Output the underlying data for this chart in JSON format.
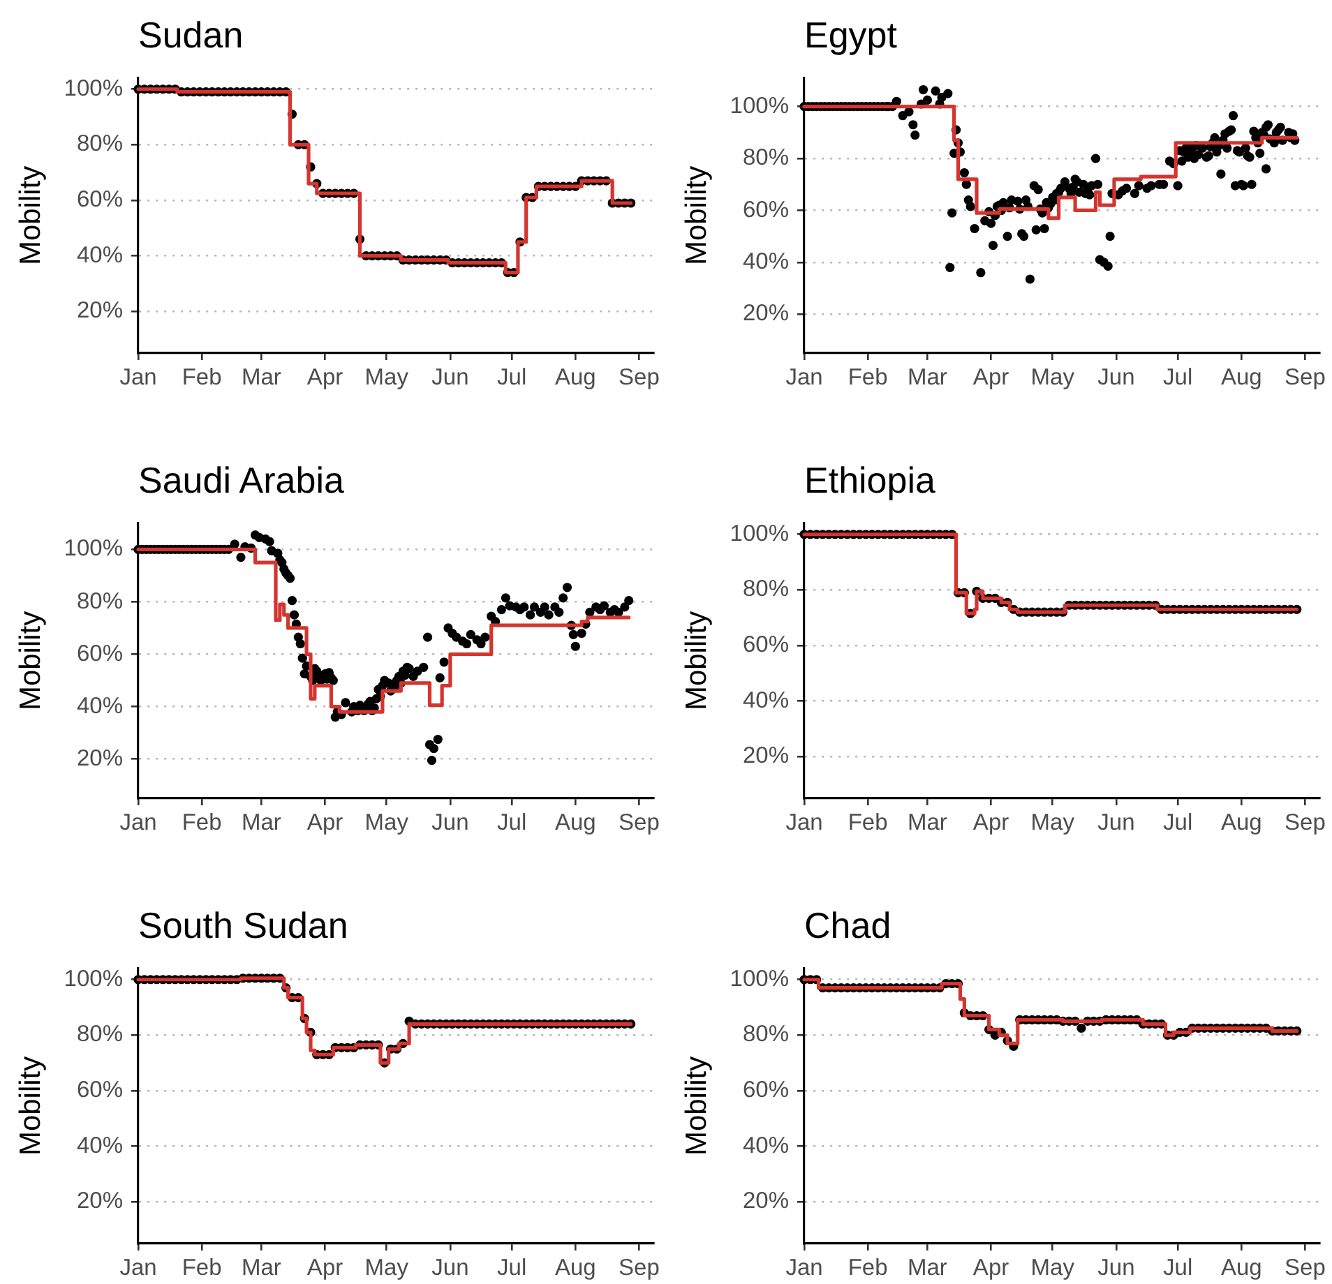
{
  "chart_data": [
    {
      "type": "scatter",
      "title": "Sudan",
      "ylabel": "Mobility",
      "grid": "y",
      "xlim": [
        "--01-01",
        "--09-08"
      ],
      "ylim": [
        5,
        104
      ],
      "xticks": [
        {
          "value": "--01-01",
          "label": "Jan"
        },
        {
          "value": "--02-01",
          "label": "Feb"
        },
        {
          "value": "--03-01",
          "label": "Mar"
        },
        {
          "value": "--04-01",
          "label": "Apr"
        },
        {
          "value": "--05-01",
          "label": "May"
        },
        {
          "value": "--06-01",
          "label": "Jun"
        },
        {
          "value": "--07-01",
          "label": "Jul"
        },
        {
          "value": "--08-01",
          "label": "Aug"
        },
        {
          "value": "--09-01",
          "label": "Sep"
        }
      ],
      "yticks": [
        {
          "value": 20,
          "label": "20%"
        },
        {
          "value": 40,
          "label": "40%"
        },
        {
          "value": 60,
          "label": "60%"
        },
        {
          "value": 80,
          "label": "80%"
        },
        {
          "value": 100,
          "label": "100%"
        }
      ],
      "x": [
        "--01-01",
        "--01-04",
        "--01-07",
        "--01-10",
        "--01-13",
        "--01-16",
        "--01-19",
        "--01-22",
        "--01-25",
        "--01-28",
        "--01-31",
        "--02-03",
        "--02-06",
        "--02-09",
        "--02-12",
        "--02-15",
        "--02-18",
        "--02-21",
        "--02-24",
        "--02-27",
        "--03-01",
        "--03-04",
        "--03-07",
        "--03-10",
        "--03-13",
        "--03-16",
        "--03-19",
        "--03-22",
        "--03-25",
        "--03-28",
        "--03-31",
        "--04-03",
        "--04-06",
        "--04-09",
        "--04-12",
        "--04-15",
        "--04-18",
        "--04-21",
        "--04-24",
        "--04-27",
        "--04-30",
        "--05-03",
        "--05-06",
        "--05-09",
        "--05-12",
        "--05-15",
        "--05-18",
        "--05-21",
        "--05-24",
        "--05-27",
        "--05-30",
        "--06-02",
        "--06-05",
        "--06-08",
        "--06-11",
        "--06-14",
        "--06-17",
        "--06-20",
        "--06-23",
        "--06-26",
        "--06-29",
        "--07-02",
        "--07-05",
        "--07-08",
        "--07-11",
        "--07-14",
        "--07-17",
        "--07-20",
        "--07-23",
        "--07-26",
        "--07-29",
        "--08-01",
        "--08-04",
        "--08-07",
        "--08-10",
        "--08-13",
        "--08-16",
        "--08-19",
        "--08-22",
        "--08-25",
        "--08-28"
      ],
      "series": [
        {
          "color": "#000000",
          "marker": "circle",
          "values": [
            100,
            100,
            100,
            100,
            100,
            100,
            100,
            99,
            99,
            99,
            99,
            99,
            99,
            99,
            99,
            99,
            99,
            99,
            99,
            99,
            99,
            99,
            99,
            99,
            99,
            91,
            80,
            80,
            72,
            66,
            62.5,
            62.5,
            62.5,
            62.5,
            62.5,
            62.5,
            46,
            40,
            40,
            40,
            40,
            40,
            40,
            38.5,
            38.5,
            38.5,
            38.5,
            38.5,
            38.5,
            38.5,
            38.5,
            37.5,
            37.5,
            37.5,
            37.5,
            37.5,
            37.5,
            37.5,
            37.5,
            37.5,
            34,
            34,
            45,
            61,
            61,
            65,
            65,
            65,
            65,
            65,
            65,
            65,
            67,
            67,
            67,
            67,
            67,
            59,
            59,
            59,
            59
          ]
        },
        {
          "type": "step",
          "color": "#d4352f",
          "x": [
            "--01-01",
            "--01-20",
            "--03-15",
            "--03-24",
            "--03-28",
            "--04-18",
            "--05-08",
            "--05-31",
            "--06-28",
            "--07-04",
            "--07-08",
            "--07-13",
            "--08-04",
            "--08-19",
            "--08-28"
          ],
          "values": [
            100,
            99,
            80,
            66,
            62.5,
            40,
            38.5,
            37.5,
            34,
            45,
            61,
            65,
            67,
            59,
            59
          ]
        }
      ]
    },
    {
      "type": "scatter",
      "title": "Egypt",
      "ylabel": "Mobility",
      "grid": "y",
      "xlim": [
        "--01-01",
        "--09-08"
      ],
      "ylim": [
        5,
        111
      ],
      "xticks": [
        {
          "value": "--01-01",
          "label": "Jan"
        },
        {
          "value": "--02-01",
          "label": "Feb"
        },
        {
          "value": "--03-01",
          "label": "Mar"
        },
        {
          "value": "--04-01",
          "label": "Apr"
        },
        {
          "value": "--05-01",
          "label": "May"
        },
        {
          "value": "--06-01",
          "label": "Jun"
        },
        {
          "value": "--07-01",
          "label": "Jul"
        },
        {
          "value": "--08-01",
          "label": "Aug"
        },
        {
          "value": "--09-01",
          "label": "Sep"
        }
      ],
      "yticks": [
        {
          "value": 20,
          "label": "20%"
        },
        {
          "value": 40,
          "label": "40%"
        },
        {
          "value": 60,
          "label": "60%"
        },
        {
          "value": 80,
          "label": "80%"
        },
        {
          "value": 100,
          "label": "100%"
        }
      ],
      "series": [
        {
          "color": "#000000",
          "marker": "circle",
          "x": [
            "--01-01",
            "--01-05",
            "--01-09",
            "--01-13",
            "--01-17",
            "--01-21",
            "--01-25",
            "--01-29",
            "--02-02",
            "--02-06",
            "--02-10",
            "--02-13",
            "--02-15",
            "--02-18",
            "--02-21",
            "--02-23",
            "--02-24",
            "--02-27",
            "--02-28",
            "--03-01",
            "--03-05",
            "--03-07",
            "--03-08",
            "--03-11",
            "--03-12",
            "--03-13",
            "--03-14",
            "--03-15",
            "--03-16",
            "--03-17",
            "--03-19",
            "--03-20",
            "--03-21",
            "--03-22",
            "--03-24",
            "--03-27",
            "--03-29",
            "--03-31",
            "--04-02",
            "--04-05",
            "--04-07",
            "--04-09",
            "--04-14",
            "--04-16",
            "--04-19",
            "--04-20",
            "--04-22",
            "--04-23",
            "--04-25",
            "--04-28",
            "--05-01",
            "--05-03",
            "--05-05",
            "--05-10",
            "--05-13",
            "--05-17",
            "--05-20",
            "--05-22",
            "--05-23",
            "--05-24",
            "--05-26",
            "--05-28",
            "--05-29",
            "--05-30",
            "--06-02",
            "--06-04",
            "--06-06",
            "--06-10",
            "--06-12",
            "--06-16",
            "--06-18",
            "--06-22",
            "--06-24",
            "--06-27",
            "--06-29",
            "--07-01",
            "--07-04",
            "--07-06",
            "--07-08",
            "--07-11",
            "--07-13",
            "--07-15",
            "--07-18",
            "--07-20",
            "--07-22",
            "--07-24",
            "--07-26",
            "--07-28",
            "--07-29",
            "--07-31",
            "--08-01",
            "--08-02",
            "--08-05",
            "--08-07",
            "--08-09",
            "--08-13",
            "--08-13",
            "--08-15",
            "--08-19",
            "--08-21",
            "--08-27",
            "--01-03",
            "--01-07",
            "--01-11",
            "--01-15",
            "--01-19",
            "--01-23",
            "--01-27",
            "--01-31",
            "--02-04",
            "--02-08",
            "--02-11",
            "--04-01",
            "--04-03",
            "--04-04",
            "--04-06",
            "--04-10",
            "--04-11",
            "--04-15",
            "--04-17",
            "--04-18",
            "--04-24",
            "--04-26",
            "--04-27",
            "--04-29",
            "--04-30",
            "--05-02",
            "--05-04",
            "--05-07",
            "--05-09",
            "--05-11",
            "--05-12",
            "--05-14",
            "--05-16",
            "--05-18",
            "--05-19",
            "--07-02",
            "--07-03",
            "--07-05",
            "--07-07",
            "--07-09",
            "--07-10",
            "--07-16",
            "--07-17",
            "--07-19",
            "--07-21",
            "--07-23",
            "--07-25",
            "--07-27",
            "--07-30",
            "--08-03",
            "--08-04",
            "--08-06",
            "--08-08",
            "--08-10",
            "--08-11",
            "--08-12",
            "--08-14",
            "--08-17",
            "--08-18",
            "--08-20",
            "--08-24",
            "--08-25",
            "--08-26"
          ],
          "values": [
            100,
            100,
            100,
            100,
            100,
            100,
            100,
            100,
            100,
            100,
            100,
            100,
            102,
            96.5,
            98,
            93,
            89,
            101,
            106.5,
            102.5,
            106,
            101,
            103.5,
            105,
            38,
            59,
            82,
            91,
            86,
            82.5,
            74.5,
            70,
            64,
            61.5,
            53,
            36,
            56,
            59.5,
            46.5,
            62,
            63,
            50,
            63.5,
            51,
            61.5,
            33.5,
            69.5,
            52.5,
            60.5,
            63,
            65,
            66.5,
            68.5,
            66.5,
            71,
            66.5,
            69.5,
            80,
            70,
            41,
            40,
            38.5,
            50,
            66.5,
            66,
            67.5,
            68.5,
            66.5,
            69.5,
            68.5,
            69.5,
            70,
            70,
            79,
            78,
            69.5,
            82.5,
            80.5,
            84,
            81.5,
            84,
            80.5,
            86,
            82.5,
            74,
            89.5,
            90.5,
            96.5,
            69.5,
            82.5,
            70,
            69.5,
            80.5,
            90.5,
            86,
            92,
            76,
            87.5,
            91,
            87,
            87,
            100,
            100,
            100,
            100,
            100,
            100,
            100,
            100,
            100,
            100,
            100,
            55,
            58,
            61.5,
            60,
            61,
            64,
            60.5,
            50,
            64,
            68,
            59,
            53,
            61,
            62.5,
            64,
            67,
            71,
            68.5,
            69,
            72,
            67,
            70,
            68,
            66,
            83,
            79,
            84,
            82,
            80,
            85,
            81,
            84.5,
            88,
            85,
            87,
            84,
            91,
            83,
            84,
            81,
            70,
            88,
            82,
            90,
            89,
            93,
            86,
            90,
            92,
            90,
            88,
            89.5
          ]
        },
        {
          "type": "step",
          "color": "#d4352f",
          "x": [
            "--01-01",
            "--03-14",
            "--03-16",
            "--03-25",
            "--04-05",
            "--04-29",
            "--05-04",
            "--05-12",
            "--05-22",
            "--05-24",
            "--05-31",
            "--06-13",
            "--06-30",
            "--08-11",
            "--08-28"
          ],
          "values": [
            100,
            87,
            72,
            59,
            60.5,
            57,
            65,
            60,
            67,
            62,
            72,
            73,
            86,
            88,
            88
          ]
        }
      ]
    },
    {
      "type": "scatter",
      "title": "Saudi Arabia",
      "ylabel": "Mobility",
      "grid": "y",
      "xlim": [
        "--01-01",
        "--09-08"
      ],
      "ylim": [
        5,
        110
      ],
      "xticks": [
        {
          "value": "--01-01",
          "label": "Jan"
        },
        {
          "value": "--02-01",
          "label": "Feb"
        },
        {
          "value": "--03-01",
          "label": "Mar"
        },
        {
          "value": "--04-01",
          "label": "Apr"
        },
        {
          "value": "--05-01",
          "label": "May"
        },
        {
          "value": "--06-01",
          "label": "Jun"
        },
        {
          "value": "--07-01",
          "label": "Jul"
        },
        {
          "value": "--08-01",
          "label": "Aug"
        },
        {
          "value": "--09-01",
          "label": "Sep"
        }
      ],
      "yticks": [
        {
          "value": 20,
          "label": "20%"
        },
        {
          "value": 40,
          "label": "40%"
        },
        {
          "value": 60,
          "label": "60%"
        },
        {
          "value": 80,
          "label": "80%"
        },
        {
          "value": 100,
          "label": "100%"
        }
      ],
      "series": [
        {
          "color": "#000000",
          "marker": "circle",
          "x": [
            "--01-01",
            "--01-05",
            "--01-09",
            "--01-13",
            "--01-17",
            "--01-21",
            "--01-25",
            "--01-29",
            "--02-02",
            "--02-06",
            "--02-10",
            "--02-14",
            "--02-17",
            "--02-20",
            "--02-22",
            "--02-25",
            "--02-27",
            "--02-29",
            "--03-03",
            "--03-05",
            "--03-06",
            "--03-09",
            "--03-10",
            "--03-11",
            "--03-12",
            "--03-13",
            "--03-15",
            "--03-16",
            "--03-17",
            "--03-18",
            "--03-19",
            "--03-20",
            "--03-21",
            "--03-22",
            "--03-25",
            "--03-28",
            "--03-30",
            "--04-01",
            "--04-04",
            "--04-06",
            "--04-09",
            "--04-11",
            "--04-18",
            "--04-20",
            "--04-23",
            "--04-25",
            "--04-27",
            "--04-30",
            "--05-02",
            "--05-05",
            "--05-07",
            "--05-09",
            "--05-12",
            "--05-14",
            "--05-16",
            "--05-19",
            "--05-21",
            "--05-22",
            "--05-23",
            "--05-24",
            "--05-26",
            "--05-27",
            "--05-29",
            "--05-31",
            "--06-02",
            "--06-04",
            "--06-07",
            "--06-09",
            "--06-11",
            "--06-14",
            "--06-16",
            "--06-18",
            "--06-21",
            "--06-23",
            "--06-26",
            "--06-28",
            "--06-30",
            "--07-03",
            "--07-05",
            "--07-07",
            "--07-10",
            "--07-12",
            "--07-15",
            "--07-17",
            "--07-19",
            "--07-22",
            "--07-24",
            "--07-26",
            "--07-28",
            "--07-30",
            "--07-31",
            "--08-01",
            "--08-04",
            "--08-06",
            "--08-08",
            "--08-11",
            "--08-13",
            "--08-15",
            "--08-18",
            "--08-20",
            "--08-22",
            "--08-25",
            "--08-27",
            "--01-03",
            "--01-07",
            "--01-11",
            "--01-15",
            "--01-19",
            "--01-23",
            "--01-27",
            "--01-31",
            "--02-04",
            "--02-08",
            "--02-12",
            "--03-14",
            "--03-23",
            "--03-26",
            "--03-27",
            "--03-29",
            "--04-02",
            "--04-03",
            "--04-05",
            "--04-07",
            "--04-14",
            "--04-15",
            "--04-17",
            "--04-22",
            "--04-24",
            "--04-26",
            "--04-28",
            "--04-29",
            "--05-03",
            "--05-06",
            "--05-08",
            "--05-10",
            "--05-11"
          ],
          "values": [
            100,
            100,
            100,
            100,
            100,
            100,
            100,
            100,
            100,
            100,
            100,
            100,
            102,
            97,
            101,
            100.5,
            105.5,
            104.5,
            104,
            103,
            99.5,
            98.5,
            96,
            95,
            92.5,
            91,
            89,
            80.5,
            75,
            71.5,
            66.5,
            64,
            58.5,
            52.5,
            51.5,
            53.5,
            50,
            52.5,
            51,
            36,
            37,
            41.5,
            40.5,
            38.5,
            42,
            39.5,
            46.5,
            50,
            49,
            47.5,
            51.5,
            53.5,
            54.5,
            51.5,
            53.5,
            55,
            66.5,
            25.5,
            19.5,
            24,
            27.5,
            51,
            57,
            70,
            68,
            66.5,
            65,
            64,
            67.5,
            65.5,
            64,
            66.5,
            74.5,
            72.5,
            77,
            81.5,
            78.5,
            78,
            77,
            78,
            75,
            78,
            76,
            78,
            75,
            78,
            76,
            81.5,
            85.5,
            71,
            67.5,
            63,
            68,
            71.5,
            76,
            78,
            77,
            78.5,
            76,
            77,
            76,
            78,
            80.5,
            100,
            100,
            100,
            100,
            100,
            100,
            100,
            100,
            100,
            100,
            100,
            90,
            55.5,
            50,
            54.5,
            52,
            50.5,
            53,
            50,
            38,
            38,
            40,
            38.5,
            41,
            38.5,
            43,
            44,
            48,
            46,
            50,
            49,
            52,
            55
          ]
        },
        {
          "type": "step",
          "color": "#d4352f",
          "x": [
            "--01-01",
            "--02-27",
            "--03-08",
            "--03-10",
            "--03-12",
            "--03-14",
            "--03-23",
            "--03-25",
            "--03-27",
            "--04-04",
            "--04-08",
            "--04-29",
            "--05-08",
            "--05-22",
            "--05-28",
            "--06-01",
            "--06-21",
            "--08-04",
            "--08-07",
            "--08-27"
          ],
          "values": [
            100,
            95,
            73,
            79,
            75,
            70,
            60,
            43,
            48,
            40,
            38,
            46,
            49,
            40.5,
            48,
            60,
            71,
            72.5,
            74,
            74
          ]
        }
      ]
    },
    {
      "type": "scatter",
      "title": "Ethiopia",
      "ylabel": "Mobility",
      "grid": "y",
      "xlim": [
        "--01-01",
        "--09-08"
      ],
      "ylim": [
        5,
        104
      ],
      "xticks": [
        {
          "value": "--01-01",
          "label": "Jan"
        },
        {
          "value": "--02-01",
          "label": "Feb"
        },
        {
          "value": "--03-01",
          "label": "Mar"
        },
        {
          "value": "--04-01",
          "label": "Apr"
        },
        {
          "value": "--05-01",
          "label": "May"
        },
        {
          "value": "--06-01",
          "label": "Jun"
        },
        {
          "value": "--07-01",
          "label": "Jul"
        },
        {
          "value": "--08-01",
          "label": "Aug"
        },
        {
          "value": "--09-01",
          "label": "Sep"
        }
      ],
      "yticks": [
        {
          "value": 20,
          "label": "20%"
        },
        {
          "value": 40,
          "label": "40%"
        },
        {
          "value": 60,
          "label": "60%"
        },
        {
          "value": 80,
          "label": "80%"
        },
        {
          "value": 100,
          "label": "100%"
        }
      ],
      "x": [
        "--01-01",
        "--01-04",
        "--01-07",
        "--01-10",
        "--01-13",
        "--01-16",
        "--01-19",
        "--01-22",
        "--01-25",
        "--01-28",
        "--01-31",
        "--02-03",
        "--02-06",
        "--02-09",
        "--02-12",
        "--02-15",
        "--02-18",
        "--02-21",
        "--02-24",
        "--02-27",
        "--03-01",
        "--03-04",
        "--03-07",
        "--03-10",
        "--03-13",
        "--03-16",
        "--03-19",
        "--03-22",
        "--03-25",
        "--03-28",
        "--03-31",
        "--04-03",
        "--04-06",
        "--04-09",
        "--04-12",
        "--04-15",
        "--04-18",
        "--04-21",
        "--04-24",
        "--04-27",
        "--04-30",
        "--05-03",
        "--05-06",
        "--05-09",
        "--05-12",
        "--05-15",
        "--05-18",
        "--05-21",
        "--05-24",
        "--05-27",
        "--05-30",
        "--06-02",
        "--06-05",
        "--06-08",
        "--06-11",
        "--06-14",
        "--06-17",
        "--06-20",
        "--06-23",
        "--06-26",
        "--06-29",
        "--07-02",
        "--07-05",
        "--07-08",
        "--07-11",
        "--07-14",
        "--07-17",
        "--07-20",
        "--07-23",
        "--07-26",
        "--07-29",
        "--08-01",
        "--08-04",
        "--08-07",
        "--08-10",
        "--08-13",
        "--08-16",
        "--08-19",
        "--08-22",
        "--08-25",
        "--08-28"
      ],
      "series": [
        {
          "color": "#000000",
          "marker": "circle",
          "values": [
            100,
            100,
            100,
            100,
            100,
            100,
            100,
            100,
            100,
            100,
            100,
            100,
            100,
            100,
            100,
            100,
            100,
            100,
            100,
            100,
            100,
            100,
            100,
            100,
            100,
            79,
            79,
            71.5,
            79.5,
            77,
            77,
            77,
            75.5,
            75.5,
            73,
            72,
            72,
            72,
            72,
            72,
            72,
            72,
            72,
            74.5,
            74.5,
            74.5,
            74.5,
            74.5,
            74.5,
            74.5,
            74.5,
            74.5,
            74.5,
            74.5,
            74.5,
            74.5,
            74.5,
            74.5,
            73,
            73,
            73,
            73,
            73,
            73,
            73,
            73,
            73,
            73,
            73,
            73,
            73,
            73,
            73,
            73,
            73,
            73,
            73,
            73,
            73,
            73,
            73
          ]
        },
        {
          "type": "step",
          "color": "#d4352f",
          "x": [
            "--01-01",
            "--03-15",
            "--03-20",
            "--03-24",
            "--03-25",
            "--03-28",
            "--04-06",
            "--04-10",
            "--04-14",
            "--05-07",
            "--06-21",
            "--08-28"
          ],
          "values": [
            100,
            79,
            71.5,
            73,
            79.5,
            77,
            75.5,
            73,
            72,
            74.5,
            73,
            73
          ]
        }
      ]
    },
    {
      "type": "scatter",
      "title": "South Sudan",
      "ylabel": "Mobility",
      "grid": "y",
      "xlim": [
        "--01-01",
        "--09-08"
      ],
      "ylim": [
        5,
        104
      ],
      "xticks": [
        {
          "value": "--01-01",
          "label": "Jan"
        },
        {
          "value": "--02-01",
          "label": "Feb"
        },
        {
          "value": "--03-01",
          "label": "Mar"
        },
        {
          "value": "--04-01",
          "label": "Apr"
        },
        {
          "value": "--05-01",
          "label": "May"
        },
        {
          "value": "--06-01",
          "label": "Jun"
        },
        {
          "value": "--07-01",
          "label": "Jul"
        },
        {
          "value": "--08-01",
          "label": "Aug"
        },
        {
          "value": "--09-01",
          "label": "Sep"
        }
      ],
      "yticks": [
        {
          "value": 20,
          "label": "20%"
        },
        {
          "value": 40,
          "label": "40%"
        },
        {
          "value": 60,
          "label": "60%"
        },
        {
          "value": 80,
          "label": "80%"
        },
        {
          "value": 100,
          "label": "100%"
        }
      ],
      "x": [
        "--01-01",
        "--01-04",
        "--01-07",
        "--01-10",
        "--01-13",
        "--01-16",
        "--01-19",
        "--01-22",
        "--01-25",
        "--01-28",
        "--01-31",
        "--02-03",
        "--02-06",
        "--02-09",
        "--02-12",
        "--02-15",
        "--02-18",
        "--02-21",
        "--02-24",
        "--02-27",
        "--03-01",
        "--03-04",
        "--03-07",
        "--03-10",
        "--03-13",
        "--03-16",
        "--03-19",
        "--03-22",
        "--03-25",
        "--03-28",
        "--03-31",
        "--04-03",
        "--04-06",
        "--04-09",
        "--04-12",
        "--04-15",
        "--04-18",
        "--04-21",
        "--04-24",
        "--04-27",
        "--04-30",
        "--05-03",
        "--05-06",
        "--05-09",
        "--05-12",
        "--05-15",
        "--05-18",
        "--05-21",
        "--05-24",
        "--05-27",
        "--05-30",
        "--06-02",
        "--06-05",
        "--06-08",
        "--06-11",
        "--06-14",
        "--06-17",
        "--06-20",
        "--06-23",
        "--06-26",
        "--06-29",
        "--07-02",
        "--07-05",
        "--07-08",
        "--07-11",
        "--07-14",
        "--07-17",
        "--07-20",
        "--07-23",
        "--07-26",
        "--07-29",
        "--08-01",
        "--08-04",
        "--08-07",
        "--08-10",
        "--08-13",
        "--08-16",
        "--08-19",
        "--08-22",
        "--08-25",
        "--08-28"
      ],
      "series": [
        {
          "color": "#000000",
          "marker": "circle",
          "values": [
            100,
            100,
            100,
            100,
            100,
            100,
            100,
            100,
            100,
            100,
            100,
            100,
            100,
            100,
            100,
            100,
            100,
            100.5,
            100.5,
            100.5,
            100.5,
            100.5,
            100.5,
            100.5,
            97,
            93.5,
            93.5,
            86,
            81,
            73,
            73,
            73,
            75.5,
            75.5,
            75.5,
            75.5,
            76.5,
            76.5,
            76.5,
            76.5,
            70,
            75,
            75,
            77,
            85,
            84,
            84,
            84,
            84,
            84,
            84,
            84,
            84,
            84,
            84,
            84,
            84,
            84,
            84,
            84,
            84,
            84,
            84,
            84,
            84,
            84,
            84,
            84,
            84,
            84,
            84,
            84,
            84,
            84,
            84,
            84,
            84,
            84,
            84,
            84,
            84
          ]
        },
        {
          "type": "step",
          "color": "#d4352f",
          "x": [
            "--01-01",
            "--02-20",
            "--03-12",
            "--03-14",
            "--03-21",
            "--03-23",
            "--03-25",
            "--03-27",
            "--04-05",
            "--04-16",
            "--04-28",
            "--05-02",
            "--05-07",
            "--05-12",
            "--08-28"
          ],
          "values": [
            100,
            100.5,
            97,
            93.5,
            86,
            81,
            74.5,
            73,
            75.5,
            76.5,
            70,
            75,
            77,
            84,
            84
          ]
        }
      ]
    },
    {
      "type": "scatter",
      "title": "Chad",
      "ylabel": "Mobility",
      "grid": "y",
      "xlim": [
        "--01-01",
        "--09-08"
      ],
      "ylim": [
        5,
        104
      ],
      "xticks": [
        {
          "value": "--01-01",
          "label": "Jan"
        },
        {
          "value": "--02-01",
          "label": "Feb"
        },
        {
          "value": "--03-01",
          "label": "Mar"
        },
        {
          "value": "--04-01",
          "label": "Apr"
        },
        {
          "value": "--05-01",
          "label": "May"
        },
        {
          "value": "--06-01",
          "label": "Jun"
        },
        {
          "value": "--07-01",
          "label": "Jul"
        },
        {
          "value": "--08-01",
          "label": "Aug"
        },
        {
          "value": "--09-01",
          "label": "Sep"
        }
      ],
      "yticks": [
        {
          "value": 20,
          "label": "20%"
        },
        {
          "value": 40,
          "label": "40%"
        },
        {
          "value": 60,
          "label": "60%"
        },
        {
          "value": 80,
          "label": "80%"
        },
        {
          "value": 100,
          "label": "100%"
        }
      ],
      "x": [
        "--01-01",
        "--01-04",
        "--01-07",
        "--01-10",
        "--01-13",
        "--01-16",
        "--01-19",
        "--01-22",
        "--01-25",
        "--01-28",
        "--01-31",
        "--02-03",
        "--02-06",
        "--02-09",
        "--02-12",
        "--02-15",
        "--02-18",
        "--02-21",
        "--02-24",
        "--02-27",
        "--03-01",
        "--03-04",
        "--03-07",
        "--03-10",
        "--03-13",
        "--03-16",
        "--03-19",
        "--03-22",
        "--03-25",
        "--03-28",
        "--03-31",
        "--04-03",
        "--04-06",
        "--04-09",
        "--04-12",
        "--04-15",
        "--04-18",
        "--04-21",
        "--04-24",
        "--04-27",
        "--04-30",
        "--05-03",
        "--05-06",
        "--05-09",
        "--05-12",
        "--05-15",
        "--05-18",
        "--05-21",
        "--05-24",
        "--05-27",
        "--05-30",
        "--06-02",
        "--06-05",
        "--06-08",
        "--06-11",
        "--06-14",
        "--06-17",
        "--06-20",
        "--06-23",
        "--06-26",
        "--06-29",
        "--07-02",
        "--07-05",
        "--07-08",
        "--07-11",
        "--07-14",
        "--07-17",
        "--07-20",
        "--07-23",
        "--07-26",
        "--07-29",
        "--08-01",
        "--08-04",
        "--08-07",
        "--08-10",
        "--08-13",
        "--08-16",
        "--08-19",
        "--08-22",
        "--08-25",
        "--08-28"
      ],
      "series": [
        {
          "color": "#000000",
          "marker": "circle",
          "values": [
            100,
            100,
            100,
            97,
            97,
            97,
            97,
            97,
            97,
            97,
            97,
            97,
            97,
            97,
            97,
            97,
            97,
            97,
            97,
            97,
            97,
            97,
            97,
            98.5,
            98.5,
            98.5,
            88,
            87,
            87,
            87,
            82,
            80,
            81,
            78,
            76,
            85.5,
            85.5,
            85.5,
            85.5,
            85.5,
            85.5,
            85.5,
            85,
            85,
            85,
            82.5,
            85,
            85,
            85,
            85.5,
            85.5,
            85.5,
            85.5,
            85.5,
            85.5,
            84,
            84,
            84,
            84,
            80,
            80,
            81,
            81,
            82.5,
            82.5,
            82.5,
            82.5,
            82.5,
            82.5,
            82.5,
            82.5,
            82.5,
            82.5,
            82.5,
            82.5,
            82.5,
            81.5,
            81.5,
            81.5,
            81.5,
            81.5
          ]
        },
        {
          "type": "step",
          "color": "#d4352f",
          "x": [
            "--01-01",
            "--01-08",
            "--03-08",
            "--03-17",
            "--03-19",
            "--03-31",
            "--04-05",
            "--04-09",
            "--04-14",
            "--05-06",
            "--05-25",
            "--06-14",
            "--06-25",
            "--06-29",
            "--07-07",
            "--08-16",
            "--08-28"
          ],
          "values": [
            100,
            97,
            98.5,
            93,
            87,
            82,
            80,
            77,
            85.5,
            85,
            85.5,
            84,
            80,
            81,
            82.5,
            81.5,
            81.5
          ]
        }
      ]
    }
  ]
}
